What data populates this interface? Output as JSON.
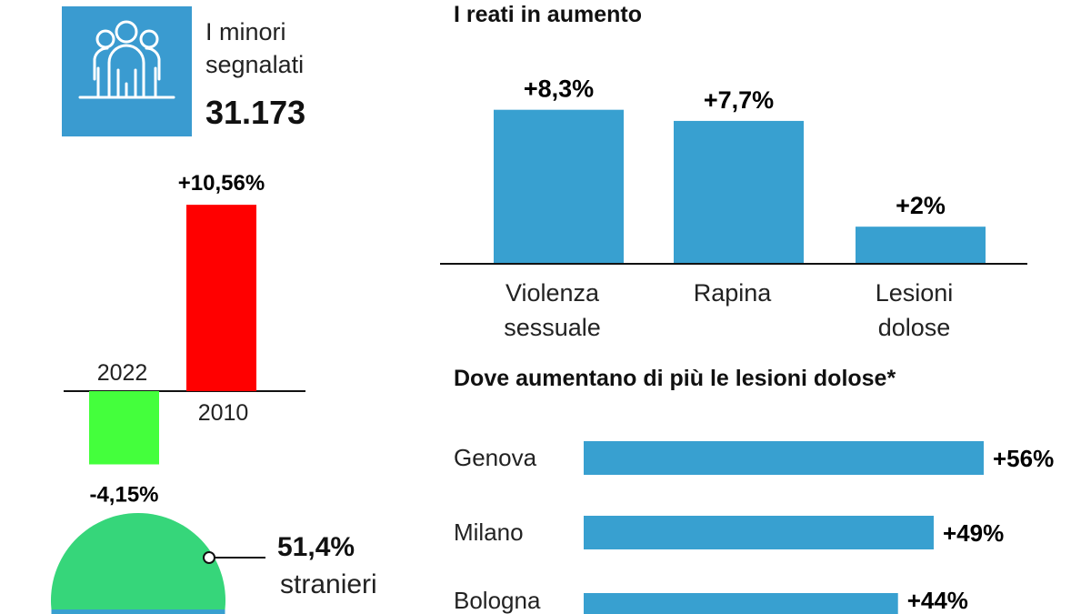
{
  "header": {
    "icon": "people-group-icon",
    "label_line1": "I minori",
    "label_line2": "segnalati",
    "count": "31.173"
  },
  "colors": {
    "blue": "#38a0d0",
    "red": "#ff0000",
    "green_bar": "#44ff3c",
    "green_pie": "#36d67a"
  },
  "pie": {
    "value_label": "51,4%",
    "category_label": "stranieri"
  },
  "chart_data": [
    {
      "type": "bar",
      "categories": [
        "2022",
        "2010"
      ],
      "values": [
        -4.15,
        10.56
      ],
      "data_labels": [
        "-4,15%",
        "+10,56%"
      ],
      "bar_colors": [
        "#44ff3c",
        "#ff0000"
      ]
    },
    {
      "type": "bar",
      "title": "I reati in aumento",
      "categories": [
        "Violenza sessuale",
        "Rapina",
        "Lesioni dolose"
      ],
      "category_lines": [
        [
          "Violenza",
          "sessuale"
        ],
        [
          "Rapina"
        ],
        [
          "Lesioni",
          "dolose"
        ]
      ],
      "values": [
        8.3,
        7.7,
        2
      ],
      "data_labels": [
        "+8,3%",
        "+7,7%",
        "+2%"
      ]
    },
    {
      "type": "bar",
      "orientation": "horizontal",
      "title": "Dove aumentano di più le lesioni dolose*",
      "categories": [
        "Genova",
        "Milano",
        "Bologna"
      ],
      "values": [
        56,
        49,
        44
      ],
      "data_labels": [
        "+56%",
        "+49%",
        "+44%"
      ]
    },
    {
      "type": "pie",
      "values": [
        51.4
      ],
      "data_labels": [
        "51,4%"
      ],
      "categories": [
        "stranieri"
      ]
    }
  ]
}
